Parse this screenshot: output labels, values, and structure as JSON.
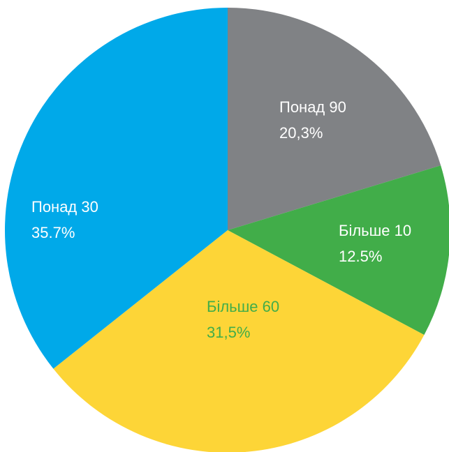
{
  "chart_data": {
    "type": "pie",
    "categories": [
      "Понад 90",
      "Більше 10",
      "Більше 60",
      "Понад 30"
    ],
    "values": [
      20.3,
      12.5,
      31.5,
      35.7
    ],
    "value_labels": [
      "20,3%",
      "12.5%",
      "31,5%",
      "35.7%"
    ],
    "colors": [
      "#808285",
      "#41ad49",
      "#fdd537",
      "#00a9e9"
    ],
    "label_colors": [
      "#ffffff",
      "#ffffff",
      "#41ad49",
      "#ffffff"
    ]
  }
}
